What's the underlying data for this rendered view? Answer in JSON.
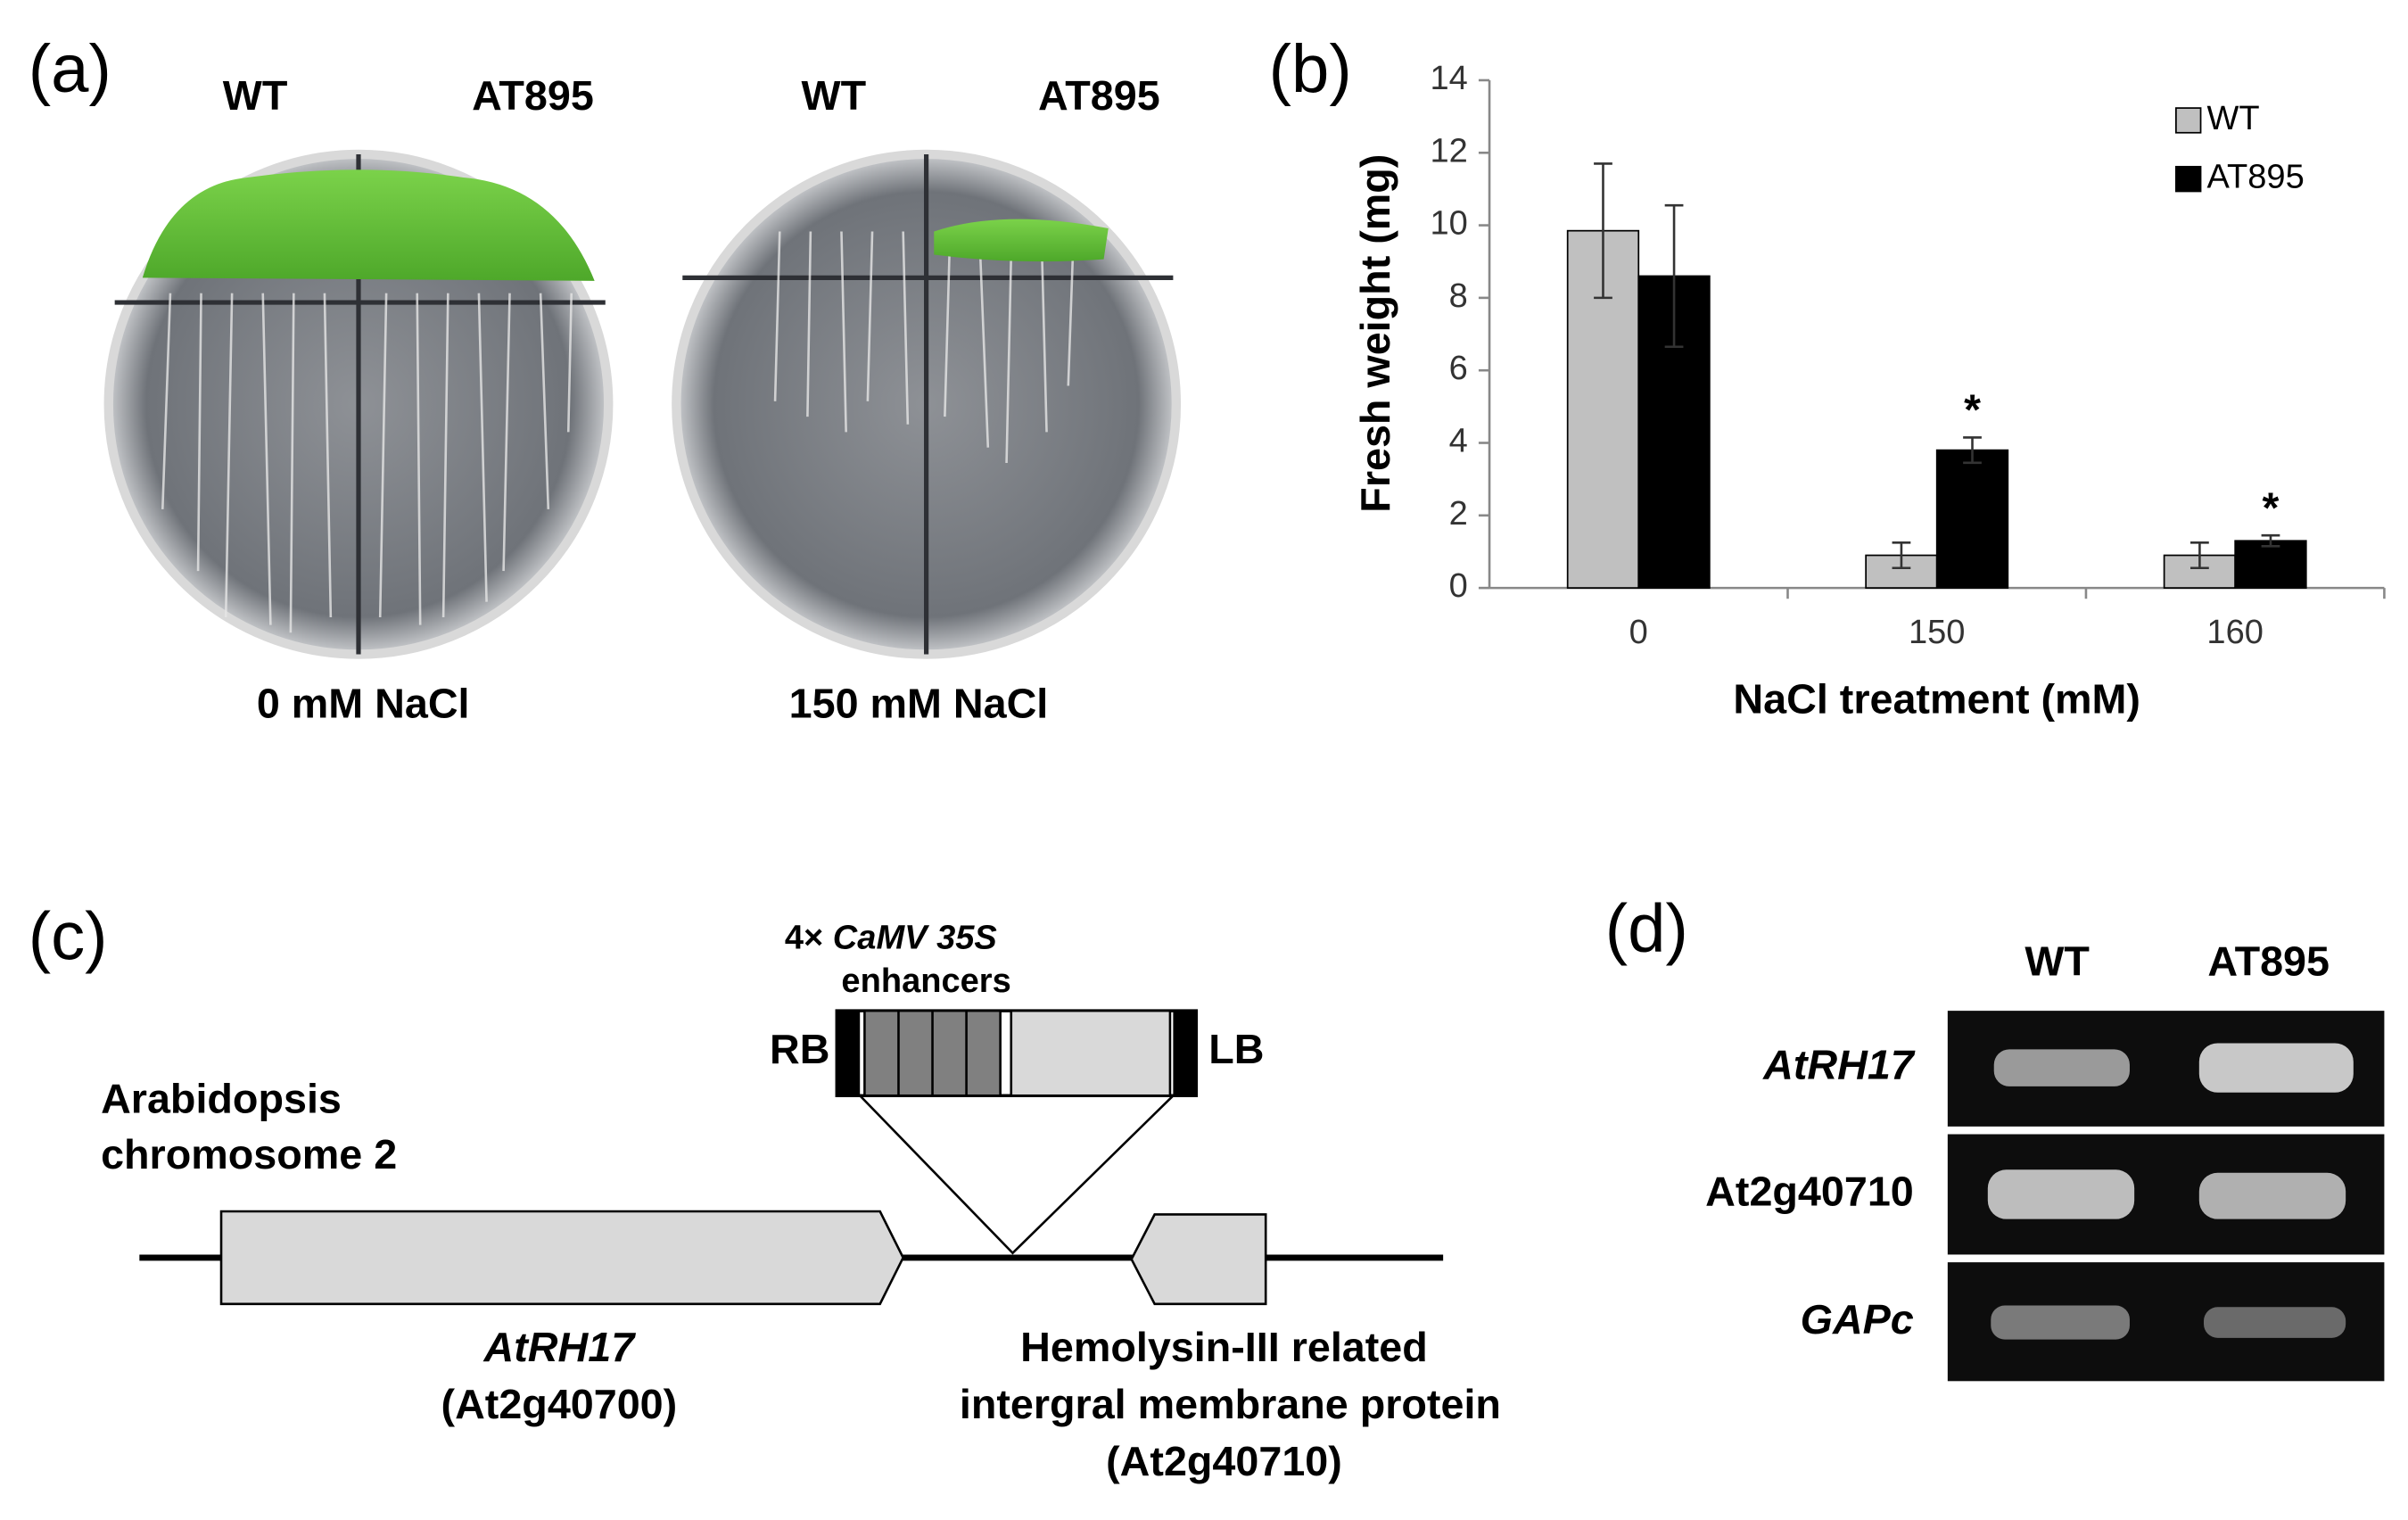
{
  "panels": {
    "a": {
      "label": "(a)",
      "plates": [
        {
          "columns": [
            "WT",
            "AT895"
          ],
          "caption": "0 mM NaCl"
        },
        {
          "columns": [
            "WT",
            "AT895"
          ],
          "caption": "150 mM NaCl"
        }
      ]
    },
    "c": {
      "label": "(c)",
      "insert": {
        "multiplier": "4×",
        "promoter": "CaMV 35S",
        "element": "enhancers",
        "left_border": "RB",
        "right_border": "LB"
      },
      "chromosome": [
        "Arabidopsis",
        "chromosome 2"
      ],
      "gene1": {
        "name": "AtRH17",
        "id": "(At2g40700)"
      },
      "gene2": {
        "description": [
          "Hemolysin-III related",
          "intergral membrane protein"
        ],
        "id": "(At2g40710)"
      }
    },
    "d": {
      "label": "(d)",
      "columns": [
        "WT",
        "AT895"
      ],
      "rows": [
        "AtRH17",
        "At2g40710",
        "GAPc"
      ]
    }
  },
  "chart_data": {
    "type": "bar",
    "panel_label": "(b)",
    "xlabel": "NaCl treatment (mM)",
    "ylabel": "Fresh weight (mg)",
    "categories": [
      "0",
      "150",
      "160"
    ],
    "series": [
      {
        "name": "WT",
        "color": "#c0c0c0",
        "values": [
          9.85,
          0.9,
          0.9
        ],
        "errors": [
          1.85,
          0.35,
          0.35
        ]
      },
      {
        "name": "AT895",
        "color": "#000000",
        "values": [
          8.6,
          3.8,
          1.3
        ],
        "errors": [
          1.95,
          0.35,
          0.15
        ],
        "significance": [
          null,
          "*",
          "*"
        ]
      }
    ],
    "ylim": [
      0,
      14
    ],
    "yticks": [
      0,
      2,
      4,
      6,
      8,
      10,
      12,
      14
    ],
    "legend": "top-right"
  }
}
